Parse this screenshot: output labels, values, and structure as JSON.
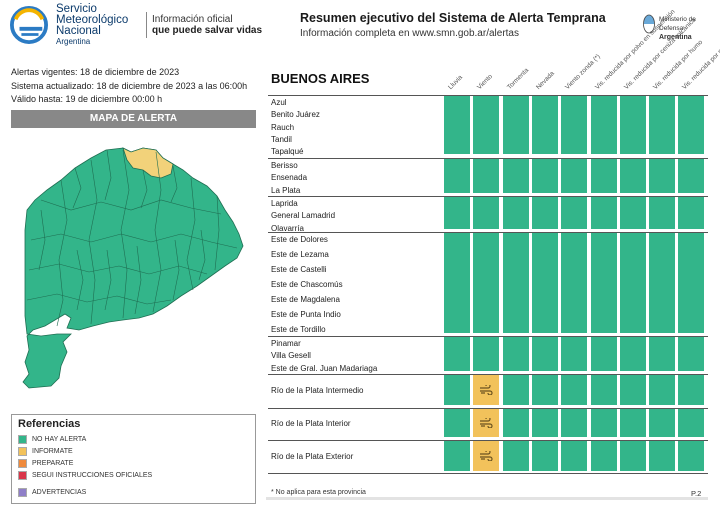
{
  "header": {
    "logo_line1": "Servicio",
    "logo_line2": "Meteorológico",
    "logo_line3": "Nacional",
    "logo_line4": "Argentina",
    "info_line1": "Información oficial",
    "info_line2": "que puede salvar vidas",
    "title": "Resumen ejecutivo del Sistema de Alerta Temprana",
    "subtitle": "Información completa en www.smn.gob.ar/alertas",
    "ministry_line1": "Ministerio de Defensa",
    "ministry_line2": "Argentina"
  },
  "meta": {
    "vigentes": "Alertas vigentes: 18 de diciembre de 2023",
    "actualizado": "Sistema actualizado: 18 de diciembre de 2023 a las 06:00h",
    "valido": "Válido hasta: 19 de diciembre 00:00 h"
  },
  "map": {
    "title": "MAPA DE ALERTA"
  },
  "references": {
    "title": "Referencias",
    "items": [
      {
        "label": "NO HAY ALERTA",
        "color": "#33b58a"
      },
      {
        "label": "INFORMATE",
        "color": "#f2c25b"
      },
      {
        "label": "PREPARATE",
        "color": "#ef8a3c"
      },
      {
        "label": "SEGUI INSTRUCCIONES OFICIALES",
        "color": "#d9364a"
      },
      {
        "label": "ADVERTENCIAS",
        "color": "#8f7fc8"
      }
    ]
  },
  "table": {
    "province": "BUENOS AIRES",
    "columns": [
      "Lluvia",
      "Viento",
      "Tormenta",
      "Nevada",
      "Viento zonda (*)",
      "Vis. reducida por polvo en suspensión",
      "Vis. reducida por ceniza volcánica",
      "Vis. reducida por humo",
      "Vis. reducida por neblina"
    ],
    "groups": [
      {
        "rows": [
          "Azul",
          "Benito Juárez",
          "Rauch",
          "Tandil",
          "Tapalqué"
        ]
      },
      {
        "rows": [
          "Berisso",
          "Ensenada",
          "La Plata"
        ]
      },
      {
        "rows": [
          "Laprida",
          "General Lamadrid",
          "Olavarría"
        ]
      },
      {
        "rows": [
          "Este de Dolores",
          "Este de Lezama",
          "Este de Castelli",
          "Este de Chascomús",
          "Este de Magdalena",
          "Este de Punta Indio",
          "Este de Tordillo"
        ]
      },
      {
        "rows": [
          "Pinamar",
          "Villa Gesell",
          "Este de Gral. Juan Madariaga"
        ]
      },
      {
        "rows": [
          "Río de la Plata Intermedio"
        ],
        "wind": "informate"
      },
      {
        "rows": [
          "Río de la Plata Interior"
        ],
        "wind": "informate"
      },
      {
        "rows": [
          "Río de la Plata Exterior"
        ],
        "wind": "informate"
      }
    ]
  },
  "footer": {
    "note": "* No aplica para esta provincia",
    "page": "P.2"
  }
}
